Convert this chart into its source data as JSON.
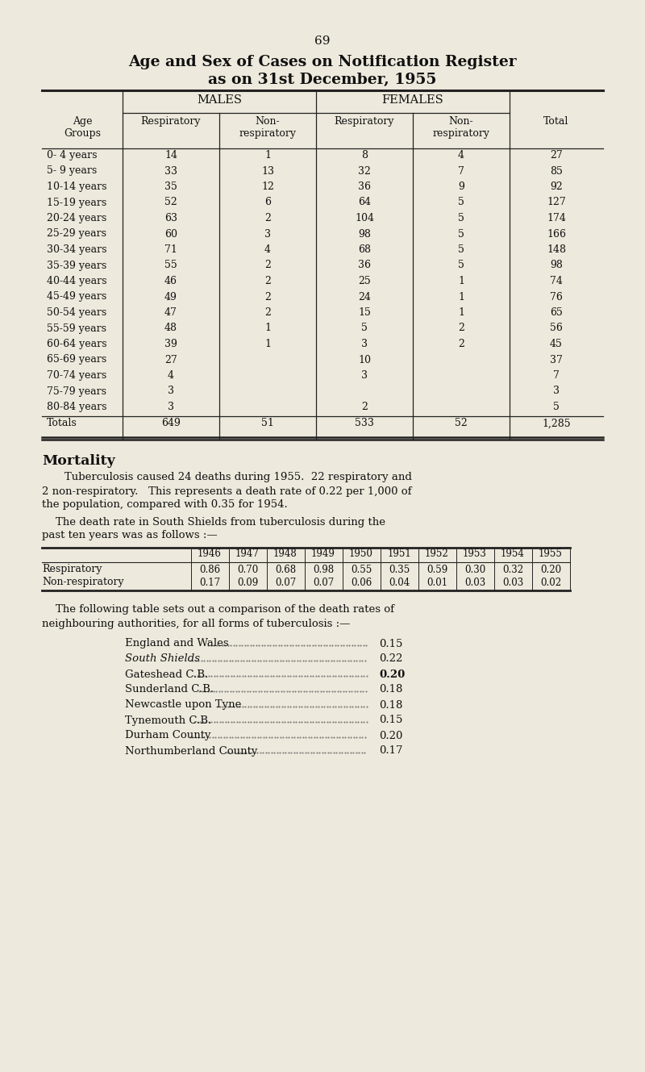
{
  "page_number": "69",
  "title_line1": "Age and Sex of Cases on Notification Register",
  "title_line2": "as on 31st December, 1955",
  "bg_color": "#ede9dc",
  "table1": {
    "rows": [
      [
        "0- 4 years",
        "14",
        "1",
        "8",
        "4",
        "27"
      ],
      [
        "5- 9 years",
        "33",
        "13",
        "32",
        "7",
        "85"
      ],
      [
        "10-14 years",
        "35",
        "12",
        "36",
        "9",
        "92"
      ],
      [
        "15-19 years",
        "52",
        "6",
        "64",
        "5",
        "127"
      ],
      [
        "20-24 years",
        "63",
        "2",
        "104",
        "5",
        "174"
      ],
      [
        "25-29 years",
        "60",
        "3",
        "98",
        "5",
        "166"
      ],
      [
        "30-34 years",
        "71",
        "4",
        "68",
        "5",
        "148"
      ],
      [
        "35-39 years",
        "55",
        "2",
        "36",
        "5",
        "98"
      ],
      [
        "40-44 years",
        "46",
        "2",
        "25",
        "1",
        "74"
      ],
      [
        "45-49 years",
        "49",
        "2",
        "24",
        "1",
        "76"
      ],
      [
        "50-54 years",
        "47",
        "2",
        "15",
        "1",
        "65"
      ],
      [
        "55-59 years",
        "48",
        "1",
        "5",
        "2",
        "56"
      ],
      [
        "60-64 years",
        "39",
        "1",
        "3",
        "2",
        "45"
      ],
      [
        "65-69 years",
        "27",
        "",
        "10",
        "",
        "37"
      ],
      [
        "70-74 years",
        "4",
        "",
        "3",
        "",
        "7"
      ],
      [
        "75-79 years",
        "3",
        "",
        "",
        "",
        "3"
      ],
      [
        "80-84 years",
        "3",
        "",
        "2",
        "",
        "5"
      ]
    ],
    "totals_row": [
      "Totals",
      "649",
      "51",
      "533",
      "52",
      "1,285"
    ]
  },
  "mortality_heading": "Mortality",
  "mortality_para1a": "Tuberculosis caused 24 deaths during 1955.  22 respiratory and",
  "mortality_para1b": "2 non-respiratory.   This represents a death rate of 0.22 per 1,000 of",
  "mortality_para1c": "the population, compared with 0.35 for 1954.",
  "mortality_para2a": "    The death rate in South Shields from tuberculosis during the",
  "mortality_para2b": "past ten years was as follows :—",
  "table2_years": [
    "1946",
    "1947",
    "1948",
    "1949",
    "1950",
    "1951",
    "1952",
    "1953",
    "1954",
    "1955"
  ],
  "table2_rows": [
    [
      "Respiratory",
      "0.86",
      "0.70",
      "0.68",
      "0.98",
      "0.55",
      "0.35",
      "0.59",
      "0.30",
      "0.32",
      "0.20"
    ],
    [
      "Non-respiratory",
      "0.17",
      "0.09",
      "0.07",
      "0.07",
      "0.06",
      "0.04",
      "0.01",
      "0.03",
      "0.03",
      "0.02"
    ]
  ],
  "comparison_intro1": "    The following table sets out a comparison of the death rates of",
  "comparison_intro2": "neighbouring authorities, for all forms of tuberculosis :—",
  "comparison_table": [
    [
      "England and Wales",
      "0.15",
      "normal",
      "normal"
    ],
    [
      "South Shields",
      "0.22",
      "italic",
      "normal"
    ],
    [
      "Gateshead C.B.",
      "0.20",
      "normal",
      "bold"
    ],
    [
      "Sunderland C.B.",
      "0.18",
      "normal",
      "normal"
    ],
    [
      "Newcastle upon Tyne",
      "0.18",
      "normal",
      "normal"
    ],
    [
      "Tynemouth C.B.",
      "0.15",
      "normal",
      "normal"
    ],
    [
      "Durham County",
      "0.20",
      "normal",
      "normal"
    ],
    [
      "Northumberland County",
      "0.17",
      "normal",
      "normal"
    ]
  ]
}
